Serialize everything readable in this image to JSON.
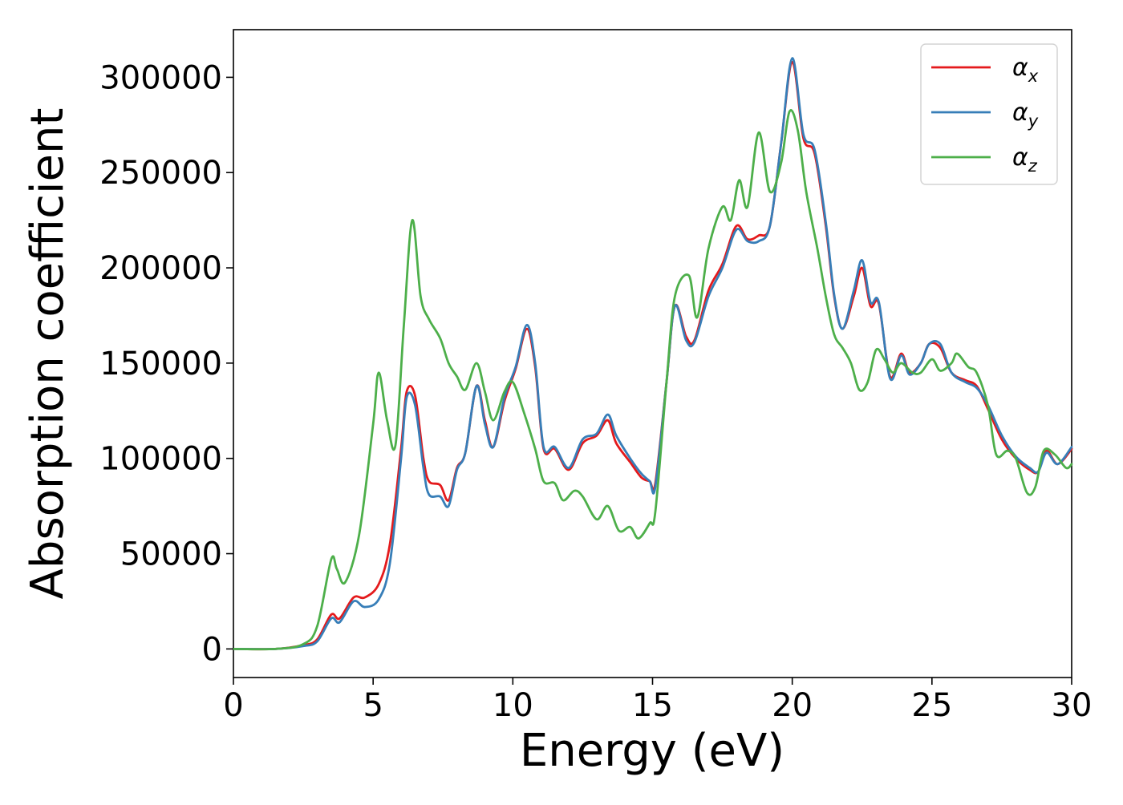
{
  "chart_data": {
    "type": "line",
    "xlabel": "Energy (eV)",
    "ylabel": "Absorption coefficient",
    "xlim": [
      0,
      30
    ],
    "ylim": [
      -15000,
      325000
    ],
    "x_ticks": [
      0,
      5,
      10,
      15,
      20,
      25,
      30
    ],
    "x_tick_labels": [
      "0",
      "5",
      "10",
      "15",
      "20",
      "25",
      "30"
    ],
    "y_ticks": [
      0,
      50000,
      100000,
      150000,
      200000,
      250000,
      300000
    ],
    "y_tick_labels": [
      "0",
      "50000",
      "100000",
      "150000",
      "200000",
      "250000",
      "300000"
    ],
    "grid": false,
    "legend_position": "top-right",
    "series": [
      {
        "name": "α_x",
        "label_main": "α",
        "label_sub": "x",
        "color": "#e41a1c",
        "points": [
          [
            0,
            0
          ],
          [
            1.5,
            0
          ],
          [
            2.5,
            2000
          ],
          [
            3.0,
            5000
          ],
          [
            3.5,
            18000
          ],
          [
            3.8,
            16000
          ],
          [
            4.3,
            27000
          ],
          [
            4.7,
            27000
          ],
          [
            5.2,
            34000
          ],
          [
            5.6,
            55000
          ],
          [
            6.0,
            105000
          ],
          [
            6.2,
            135000
          ],
          [
            6.5,
            133000
          ],
          [
            6.8,
            100000
          ],
          [
            7.0,
            88000
          ],
          [
            7.4,
            86000
          ],
          [
            7.7,
            78000
          ],
          [
            8.0,
            95000
          ],
          [
            8.3,
            103000
          ],
          [
            8.7,
            138000
          ],
          [
            9.0,
            120000
          ],
          [
            9.3,
            106000
          ],
          [
            9.7,
            130000
          ],
          [
            10.1,
            147000
          ],
          [
            10.5,
            168000
          ],
          [
            10.8,
            148000
          ],
          [
            11.1,
            105000
          ],
          [
            11.5,
            105000
          ],
          [
            12.0,
            94000
          ],
          [
            12.5,
            108000
          ],
          [
            13.0,
            112000
          ],
          [
            13.4,
            120000
          ],
          [
            13.7,
            108000
          ],
          [
            14.2,
            98000
          ],
          [
            14.6,
            90000
          ],
          [
            14.9,
            88000
          ],
          [
            15.1,
            87000
          ],
          [
            15.5,
            140000
          ],
          [
            15.8,
            180000
          ],
          [
            16.2,
            164000
          ],
          [
            16.5,
            162000
          ],
          [
            17.0,
            188000
          ],
          [
            17.5,
            202000
          ],
          [
            18.0,
            222000
          ],
          [
            18.4,
            215000
          ],
          [
            18.8,
            217000
          ],
          [
            19.2,
            222000
          ],
          [
            19.6,
            265000
          ],
          [
            20.0,
            308000
          ],
          [
            20.4,
            268000
          ],
          [
            20.8,
            260000
          ],
          [
            21.2,
            222000
          ],
          [
            21.5,
            185000
          ],
          [
            21.8,
            168000
          ],
          [
            22.2,
            185000
          ],
          [
            22.5,
            200000
          ],
          [
            22.8,
            180000
          ],
          [
            23.1,
            181000
          ],
          [
            23.5,
            143000
          ],
          [
            23.9,
            155000
          ],
          [
            24.2,
            145000
          ],
          [
            24.6,
            150000
          ],
          [
            24.9,
            160000
          ],
          [
            25.3,
            158000
          ],
          [
            25.7,
            145000
          ],
          [
            26.2,
            141000
          ],
          [
            26.6,
            138000
          ],
          [
            27.0,
            126000
          ],
          [
            27.5,
            110000
          ],
          [
            28.0,
            100000
          ],
          [
            28.5,
            94000
          ],
          [
            28.8,
            93000
          ],
          [
            29.1,
            104000
          ],
          [
            29.5,
            97000
          ],
          [
            30.0,
            105000
          ]
        ]
      },
      {
        "name": "α_y",
        "label_main": "α",
        "label_sub": "y",
        "color": "#377eb8",
        "points": [
          [
            0,
            0
          ],
          [
            1.5,
            0
          ],
          [
            2.5,
            1500
          ],
          [
            3.0,
            4000
          ],
          [
            3.5,
            16000
          ],
          [
            3.8,
            14000
          ],
          [
            4.3,
            25000
          ],
          [
            4.7,
            22000
          ],
          [
            5.2,
            26000
          ],
          [
            5.6,
            45000
          ],
          [
            6.0,
            100000
          ],
          [
            6.2,
            132000
          ],
          [
            6.5,
            128000
          ],
          [
            6.8,
            95000
          ],
          [
            7.0,
            81000
          ],
          [
            7.4,
            80000
          ],
          [
            7.7,
            75000
          ],
          [
            8.0,
            94000
          ],
          [
            8.3,
            103000
          ],
          [
            8.7,
            138000
          ],
          [
            9.0,
            118000
          ],
          [
            9.3,
            106000
          ],
          [
            9.7,
            132000
          ],
          [
            10.1,
            148000
          ],
          [
            10.5,
            170000
          ],
          [
            10.8,
            150000
          ],
          [
            11.1,
            106000
          ],
          [
            11.5,
            106000
          ],
          [
            12.0,
            95000
          ],
          [
            12.5,
            110000
          ],
          [
            13.0,
            113000
          ],
          [
            13.4,
            123000
          ],
          [
            13.7,
            112000
          ],
          [
            14.2,
            100000
          ],
          [
            14.6,
            92000
          ],
          [
            14.9,
            88000
          ],
          [
            15.1,
            85000
          ],
          [
            15.5,
            140000
          ],
          [
            15.8,
            180000
          ],
          [
            16.2,
            162000
          ],
          [
            16.5,
            161000
          ],
          [
            17.0,
            185000
          ],
          [
            17.5,
            200000
          ],
          [
            18.0,
            220000
          ],
          [
            18.4,
            214000
          ],
          [
            18.8,
            214000
          ],
          [
            19.2,
            222000
          ],
          [
            19.6,
            265000
          ],
          [
            20.0,
            310000
          ],
          [
            20.4,
            270000
          ],
          [
            20.8,
            262000
          ],
          [
            21.2,
            224000
          ],
          [
            21.5,
            186000
          ],
          [
            21.8,
            168000
          ],
          [
            22.2,
            188000
          ],
          [
            22.5,
            204000
          ],
          [
            22.8,
            182000
          ],
          [
            23.1,
            182000
          ],
          [
            23.5,
            142000
          ],
          [
            23.9,
            154000
          ],
          [
            24.2,
            144000
          ],
          [
            24.6,
            150000
          ],
          [
            24.9,
            160000
          ],
          [
            25.3,
            160000
          ],
          [
            25.7,
            145000
          ],
          [
            26.2,
            140000
          ],
          [
            26.6,
            137000
          ],
          [
            27.0,
            128000
          ],
          [
            27.5,
            112000
          ],
          [
            28.0,
            101000
          ],
          [
            28.5,
            95000
          ],
          [
            28.8,
            93000
          ],
          [
            29.1,
            103000
          ],
          [
            29.5,
            97000
          ],
          [
            30.0,
            106000
          ]
        ]
      },
      {
        "name": "α_z",
        "label_main": "α",
        "label_sub": "z",
        "color": "#4daf4a",
        "points": [
          [
            0,
            0
          ],
          [
            1.5,
            0
          ],
          [
            2.5,
            2500
          ],
          [
            3.0,
            12000
          ],
          [
            3.5,
            47000
          ],
          [
            3.7,
            42000
          ],
          [
            4.0,
            35000
          ],
          [
            4.5,
            60000
          ],
          [
            5.0,
            118000
          ],
          [
            5.2,
            145000
          ],
          [
            5.5,
            120000
          ],
          [
            5.8,
            107000
          ],
          [
            6.1,
            170000
          ],
          [
            6.4,
            225000
          ],
          [
            6.7,
            185000
          ],
          [
            7.0,
            173000
          ],
          [
            7.4,
            163000
          ],
          [
            7.7,
            150000
          ],
          [
            8.0,
            143000
          ],
          [
            8.3,
            136000
          ],
          [
            8.7,
            150000
          ],
          [
            9.0,
            135000
          ],
          [
            9.3,
            120000
          ],
          [
            9.7,
            135000
          ],
          [
            10.0,
            140000
          ],
          [
            10.4,
            124000
          ],
          [
            10.8,
            105000
          ],
          [
            11.1,
            88000
          ],
          [
            11.5,
            87000
          ],
          [
            11.8,
            78000
          ],
          [
            12.2,
            83000
          ],
          [
            12.5,
            80000
          ],
          [
            13.0,
            68000
          ],
          [
            13.4,
            75000
          ],
          [
            13.8,
            62000
          ],
          [
            14.2,
            64000
          ],
          [
            14.5,
            58000
          ],
          [
            14.9,
            66000
          ],
          [
            15.1,
            72000
          ],
          [
            15.5,
            140000
          ],
          [
            15.8,
            185000
          ],
          [
            16.3,
            196000
          ],
          [
            16.6,
            174000
          ],
          [
            17.0,
            210000
          ],
          [
            17.5,
            232000
          ],
          [
            17.8,
            225000
          ],
          [
            18.1,
            246000
          ],
          [
            18.4,
            232000
          ],
          [
            18.8,
            271000
          ],
          [
            19.2,
            240000
          ],
          [
            19.6,
            255000
          ],
          [
            19.9,
            282000
          ],
          [
            20.2,
            272000
          ],
          [
            20.5,
            240000
          ],
          [
            20.9,
            210000
          ],
          [
            21.2,
            185000
          ],
          [
            21.5,
            165000
          ],
          [
            21.8,
            158000
          ],
          [
            22.1,
            150000
          ],
          [
            22.4,
            136000
          ],
          [
            22.7,
            140000
          ],
          [
            23.0,
            157000
          ],
          [
            23.3,
            152000
          ],
          [
            23.6,
            145000
          ],
          [
            23.9,
            150000
          ],
          [
            24.3,
            145000
          ],
          [
            24.6,
            145000
          ],
          [
            25.0,
            152000
          ],
          [
            25.3,
            146000
          ],
          [
            25.7,
            150000
          ],
          [
            25.9,
            155000
          ],
          [
            26.3,
            148000
          ],
          [
            26.6,
            145000
          ],
          [
            27.0,
            128000
          ],
          [
            27.3,
            102000
          ],
          [
            27.7,
            104000
          ],
          [
            28.0,
            100000
          ],
          [
            28.4,
            82000
          ],
          [
            28.7,
            85000
          ],
          [
            29.0,
            104000
          ],
          [
            29.4,
            102000
          ],
          [
            29.8,
            95000
          ],
          [
            30.0,
            97000
          ]
        ]
      }
    ]
  }
}
